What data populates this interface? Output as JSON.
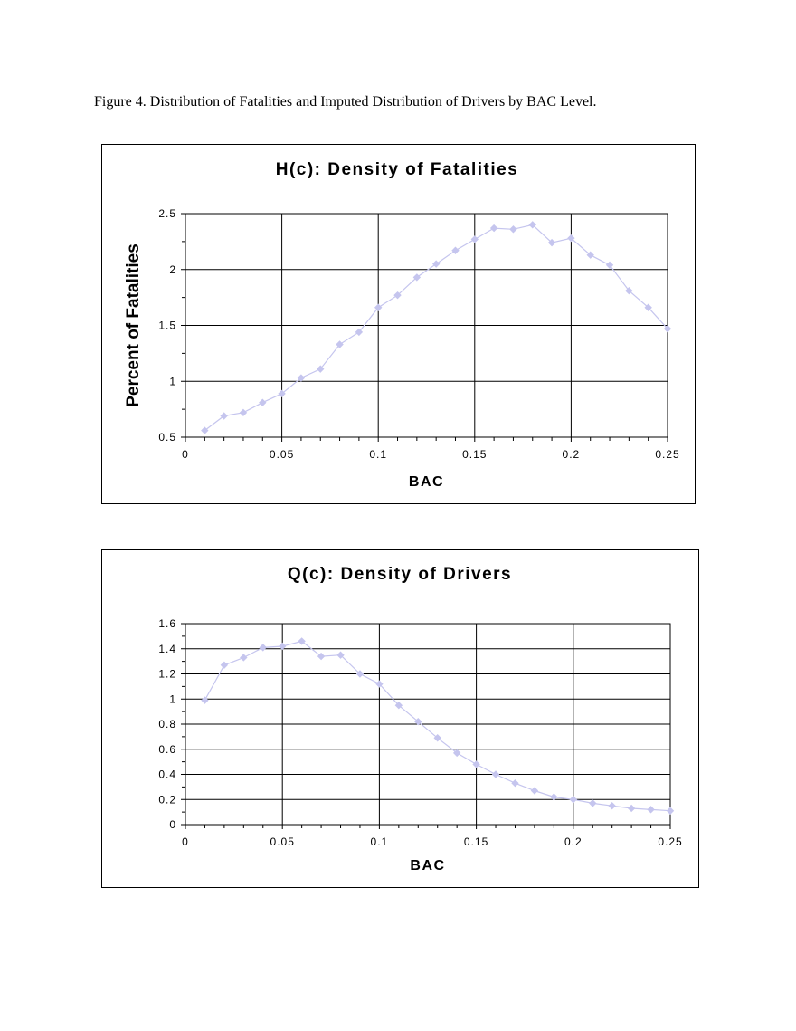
{
  "figure_caption": "Figure 4.  Distribution of Fatalities and Imputed Distribution of Drivers by BAC Level.",
  "colors": {
    "series": "#c5c5ee",
    "grid": "#000000"
  },
  "chart_data": [
    {
      "type": "line",
      "title": "H(c): Density of Fatalities",
      "xlabel": "BAC",
      "ylabel": "Percent of Fatalities",
      "xlim": [
        0,
        0.25
      ],
      "ylim": [
        0.5,
        2.5
      ],
      "xticks": [
        0,
        0.05,
        0.1,
        0.15,
        0.2,
        0.25
      ],
      "xtick_labels": [
        "0",
        "0.05",
        "0.1",
        "0.15",
        "0.2",
        "0.25"
      ],
      "yticks": [
        0.5,
        1,
        1.5,
        2,
        2.5
      ],
      "ytick_labels": [
        "0.5",
        "1",
        "1.5",
        "2",
        "2.5"
      ],
      "grid": true,
      "legend": false,
      "series": [
        {
          "x": [
            0.01,
            0.02,
            0.03,
            0.04,
            0.05,
            0.06,
            0.07,
            0.08,
            0.09,
            0.1,
            0.11,
            0.12,
            0.13,
            0.14,
            0.15,
            0.16,
            0.17,
            0.18,
            0.19,
            0.2,
            0.21,
            0.22,
            0.23,
            0.24,
            0.25
          ],
          "values": [
            0.56,
            0.69,
            0.72,
            0.81,
            0.89,
            1.03,
            1.11,
            1.33,
            1.44,
            1.66,
            1.77,
            1.93,
            2.05,
            2.17,
            2.27,
            2.37,
            2.36,
            2.4,
            2.24,
            2.28,
            2.13,
            2.04,
            1.81,
            1.66,
            1.47
          ]
        }
      ]
    },
    {
      "type": "line",
      "title": "Q(c): Density of Drivers",
      "xlabel": "BAC",
      "ylabel": "",
      "xlim": [
        0,
        0.25
      ],
      "ylim": [
        0,
        1.6
      ],
      "xticks": [
        0,
        0.05,
        0.1,
        0.15,
        0.2,
        0.25
      ],
      "xtick_labels": [
        "0",
        "0.05",
        "0.1",
        "0.15",
        "0.2",
        "0.25"
      ],
      "yticks": [
        0,
        0.2,
        0.4,
        0.6,
        0.8,
        1,
        1.2,
        1.4,
        1.6
      ],
      "ytick_labels": [
        "0",
        "0.2",
        "0.4",
        "0.6",
        "0.8",
        "1",
        "1.2",
        "1.4",
        "1.6"
      ],
      "grid": true,
      "legend": false,
      "series": [
        {
          "x": [
            0.01,
            0.02,
            0.03,
            0.04,
            0.05,
            0.06,
            0.07,
            0.08,
            0.09,
            0.1,
            0.11,
            0.12,
            0.13,
            0.14,
            0.15,
            0.16,
            0.17,
            0.18,
            0.19,
            0.2,
            0.21,
            0.22,
            0.23,
            0.24,
            0.25
          ],
          "values": [
            0.99,
            1.27,
            1.33,
            1.41,
            1.42,
            1.46,
            1.34,
            1.35,
            1.2,
            1.12,
            0.95,
            0.82,
            0.69,
            0.57,
            0.48,
            0.4,
            0.33,
            0.27,
            0.22,
            0.2,
            0.17,
            0.15,
            0.13,
            0.12,
            0.11
          ]
        }
      ]
    }
  ]
}
